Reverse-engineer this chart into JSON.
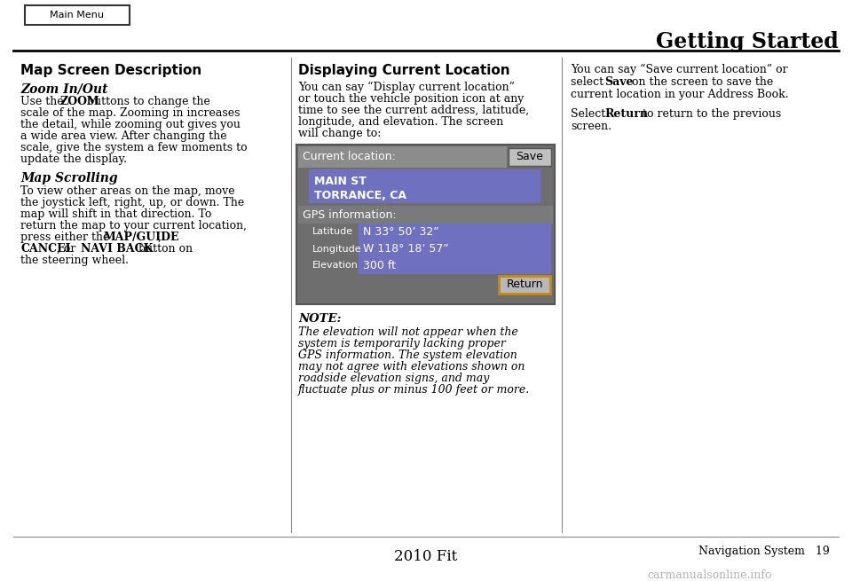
{
  "bg_color": "#ffffff",
  "page_title": "Getting Started",
  "header_box_text": "Main Menu",
  "footer_left": "2010 Fit",
  "footer_right": "Navigation System   19",
  "watermark": "carmanualsonline.info",
  "col1_heading": "Map Screen Description",
  "col1_subheading1": "Zoom In/Out",
  "col1_subheading2": "Map Scrolling",
  "col2_heading": "Displaying Current Location",
  "col2_body1_lines": [
    "You can say “Display current location”",
    "or touch the vehicle position icon at any",
    "time to see the current address, latitude,",
    "longitude, and elevation. The screen",
    "will change to:"
  ],
  "col2_screen_label": "Current location:",
  "col2_screen_btn1": "Save",
  "col2_screen_line1": "MAIN ST",
  "col2_screen_line2": "TORRANCE, CA",
  "col2_screen_gps": "GPS information:",
  "col2_screen_lat_label": "Latitude",
  "col2_screen_lat_val": "N 33° 50’ 32”",
  "col2_screen_lon_label": "Longitude",
  "col2_screen_lon_val": "W 118° 18’ 57”",
  "col2_screen_elev_label": "Elevation",
  "col2_screen_elev_val": "300 ft",
  "col2_screen_btn2": "Return",
  "col2_note_label": "NOTE:",
  "col2_note_lines": [
    "The elevation will not appear when the",
    "system is temporarily lacking proper",
    "GPS information. The system elevation",
    "may not agree with elevations shown on",
    "roadside elevation signs, and may",
    "fluctuate plus or minus 100 feet or more."
  ],
  "col3_lines_p1": [
    "You can say “Save current location” or",
    "select Save on the screen to save the",
    "current location in your Address Book."
  ],
  "col3_lines_p2": [
    "Select Return to return to the previous",
    "screen."
  ],
  "screen_outer_bg": "#6a6a6a",
  "screen_header_bg": "#8a8a8a",
  "screen_addr_bg": "#7878b8",
  "screen_gps_header_bg": "#7a7a7a",
  "screen_gps_row_bg": "#7878b8",
  "screen_gps_row_dark": "#6a6a7a",
  "screen_footer_bg": "#7a7a7a",
  "screen_text_light": "#ffffff",
  "screen_text_dark": "#000000",
  "btn_save_bg": "#c0c0c0",
  "btn_return_bg": "#b8b8b8",
  "btn_return_border": "#cc8800",
  "col_divider_color": "#888888"
}
